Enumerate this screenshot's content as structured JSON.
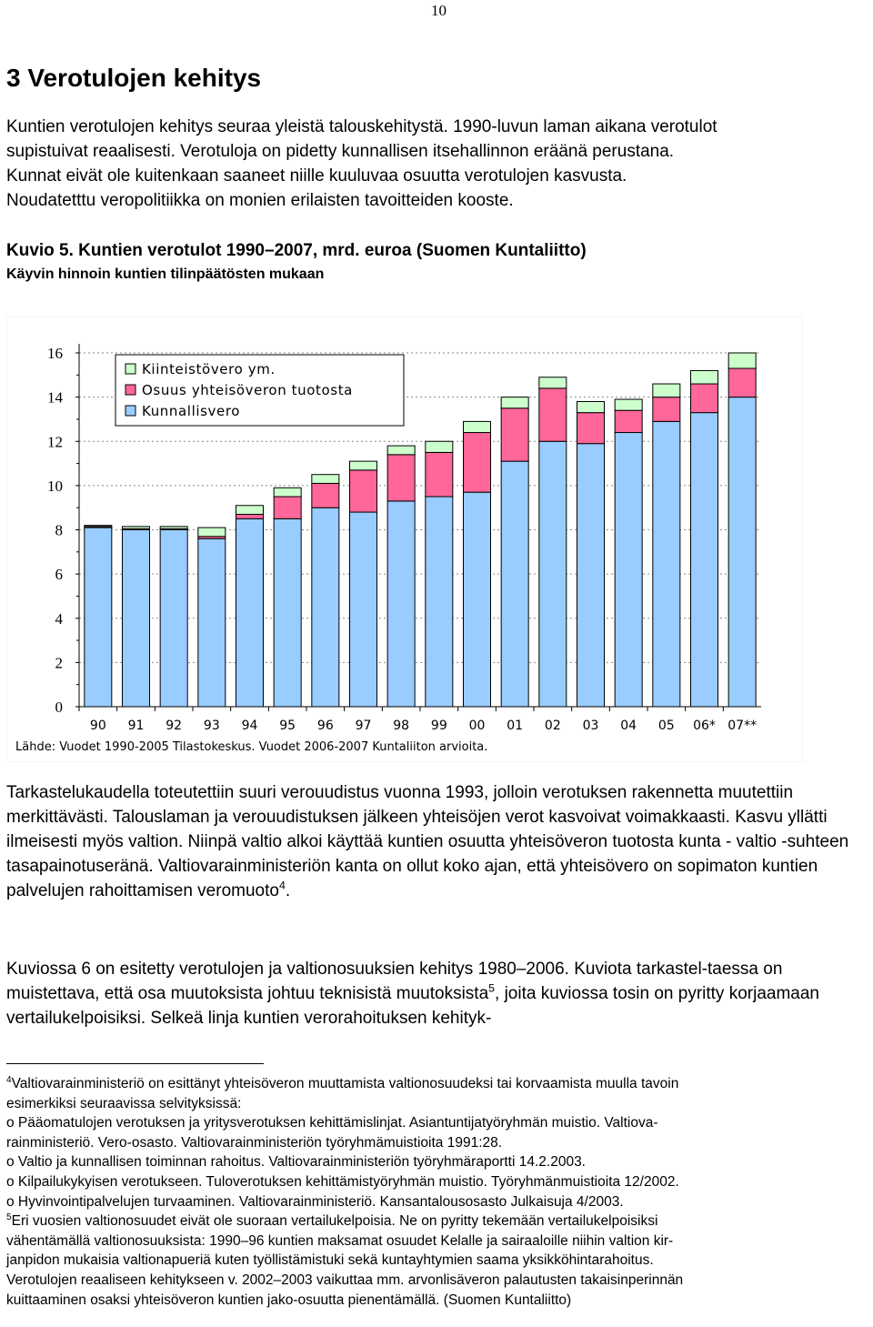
{
  "page_number": "10",
  "heading": "3 Verotulojen kehitys",
  "intro_lines": [
    "Kuntien verotulojen kehitys seuraa yleistä talouskehitystä. 1990-luvun laman aikana verotulot",
    "supistuivat reaalisesti. Verotuloja on pidetty kunnallisen itsehallinnon eräänä perustana.",
    "Kunnat eivät ole kuitenkaan saaneet niille kuuluvaa osuutta verotulojen kasvusta.",
    "Noudatetttu veropolitiikka on monien erilaisten tavoitteiden kooste."
  ],
  "figure_title": "Kuvio 5. Kuntien verotulot 1990–2007, mrd. euroa (Suomen Kuntaliitto)",
  "figure_subtitle": "Käyvin hinnoin kuntien tilinpäätösten mukaan",
  "chart_data": {
    "type": "bar",
    "stacked": true,
    "categories": [
      "90",
      "91",
      "92",
      "93",
      "94",
      "95",
      "96",
      "97",
      "98",
      "99",
      "00",
      "01",
      "02",
      "03",
      "04",
      "05",
      "06*",
      "07**"
    ],
    "series": [
      {
        "name": "Kunnallisvero",
        "color": "#99ccff",
        "values": [
          8.1,
          8.0,
          8.0,
          7.6,
          8.5,
          8.5,
          9.0,
          8.8,
          9.3,
          9.5,
          9.7,
          11.1,
          12.0,
          11.9,
          12.4,
          12.9,
          13.3,
          14.0
        ]
      },
      {
        "name": "Osuus yhteisöveron tuotosta",
        "color": "#ff6699",
        "values": [
          0.05,
          0.05,
          0.05,
          0.1,
          0.2,
          1.0,
          1.1,
          1.9,
          2.1,
          2.0,
          2.7,
          2.4,
          2.4,
          1.4,
          1.0,
          1.1,
          1.3,
          1.3
        ]
      },
      {
        "name": "Kiinteistövero ym.",
        "color": "#ccffcc",
        "values": [
          0.05,
          0.1,
          0.1,
          0.4,
          0.4,
          0.4,
          0.4,
          0.4,
          0.4,
          0.5,
          0.5,
          0.5,
          0.5,
          0.5,
          0.5,
          0.6,
          0.6,
          0.7
        ]
      }
    ],
    "ylim": [
      0,
      16
    ],
    "yticks": [
      "0",
      "2",
      "4",
      "6",
      "8",
      "10",
      "12",
      "14",
      "16"
    ],
    "grid": true,
    "legend_position": "top-left",
    "legend_order": [
      "Kiinteistövero ym.",
      "Osuus yhteisöveron tuotosta",
      "Kunnallisvero"
    ],
    "source_note": "Lähde: Vuodet 1990-2005 Tilastokeskus. Vuodet 2006-2007 Kuntaliiton arvioita."
  },
  "body_para1": "Tarkastelukaudella toteutettiin suuri verouudistus vuonna 1993, jolloin verotuksen rakennetta muutettiin merkittävästi. Talouslaman ja verouudistuksen jälkeen yhteisöjen verot kasvoivat voimakkaasti. Kasvu yllätti ilmeisesti myös valtion. Niinpä valtio alkoi käyttää kuntien osuutta yhteisöveron tuotosta kunta - valtio -suhteen tasapainotuseränä. Valtiovarainministeriön kanta on ollut koko ajan, että yhteisövero on sopimaton kuntien palvelujen rahoittamisen veromuoto",
  "body_para1_fn": "4",
  "body_para1_end": ".",
  "body_para2_a": "Kuviossa 6 on esitetty verotulojen ja valtionosuuksien kehitys 1980–2006. Kuviota tarkastel-taessa on muistettava, että osa muutoksista johtuu teknisistä muutoksista",
  "body_para2_fn": "5",
  "body_para2_b": ", joita kuviossa tosin on pyritty korjaamaan vertailukelpoisiksi. Selkeä linja kuntien verorahoituksen kehityk-",
  "footnote4_mark": "4",
  "footnote4_lines": [
    "Valtiovarainministeriö on esittänyt yhteisöveron muuttamista valtionosuudeksi tai korvaamista muulla tavoin",
    "esimerkiksi seuraavissa selvityksissä:",
    "o Pääomatulojen verotuksen ja yritysverotuksen kehittämislinjat. Asiantuntijatyöryhmän muistio. Valtiova-",
    "rainministeriö. Vero-osasto. Valtiovarainministeriön työryhmämuistioita 1991:28.",
    "o Valtio ja kunnallisen toiminnan rahoitus. Valtiovarainministeriön työryhmäraportti 14.2.2003.",
    "o Kilpailukykyisen verotukseen. Tuloverotuksen kehittämistyöryhmän muistio. Työryhmänmuistioita 12/2002.",
    "o Hyvinvointipalvelujen turvaaminen. Valtiovarainministeriö. Kansantalousosasto Julkaisuja 4/2003."
  ],
  "footnote5_mark": "5",
  "footnote5_lines": [
    "Eri vuosien valtionosuudet eivät ole suoraan vertailukelpoisia. Ne on pyritty tekemään vertailukelpoisiksi",
    "vähentämällä valtionosuuksista: 1990–96 kuntien maksamat osuudet Kelalle ja sairaaloille niihin valtion kir-",
    "janpidon mukaisia valtionapueriä kuten työllistämistuki sekä kuntayhtymien saama yksikköhintarahoitus.",
    "Verotulojen reaaliseen kehitykseen v. 2002–2003 vaikuttaa mm. arvonlisäveron palautusten takaisinperinnän",
    "kuittaaminen osaksi yhteisöveron kuntien jako-osuutta pienentämällä. (Suomen Kuntaliitto)"
  ]
}
